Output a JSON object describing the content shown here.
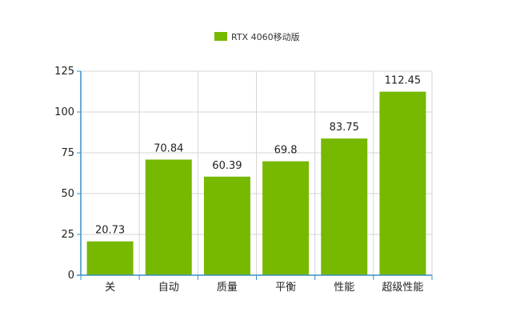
{
  "chart_data": {
    "type": "bar",
    "categories": [
      "关",
      "自动",
      "质量",
      "平衡",
      "性能",
      "超级性能"
    ],
    "series": [
      {
        "name": "RTX 4060移动版",
        "values": [
          20.73,
          70.84,
          60.39,
          69.8,
          83.75,
          112.45
        ]
      }
    ],
    "data_labels": [
      "20.73",
      "70.84",
      "60.39",
      "69.8",
      "83.75",
      "112.45"
    ],
    "y_ticks": [
      0,
      25,
      50,
      75,
      100,
      125
    ],
    "ylim": [
      0,
      125
    ],
    "grid": true,
    "legend_position": "top-center",
    "bar_color": "#77b800",
    "axis_color": "#3a8fc4",
    "grid_color": "#d6d6d6"
  }
}
